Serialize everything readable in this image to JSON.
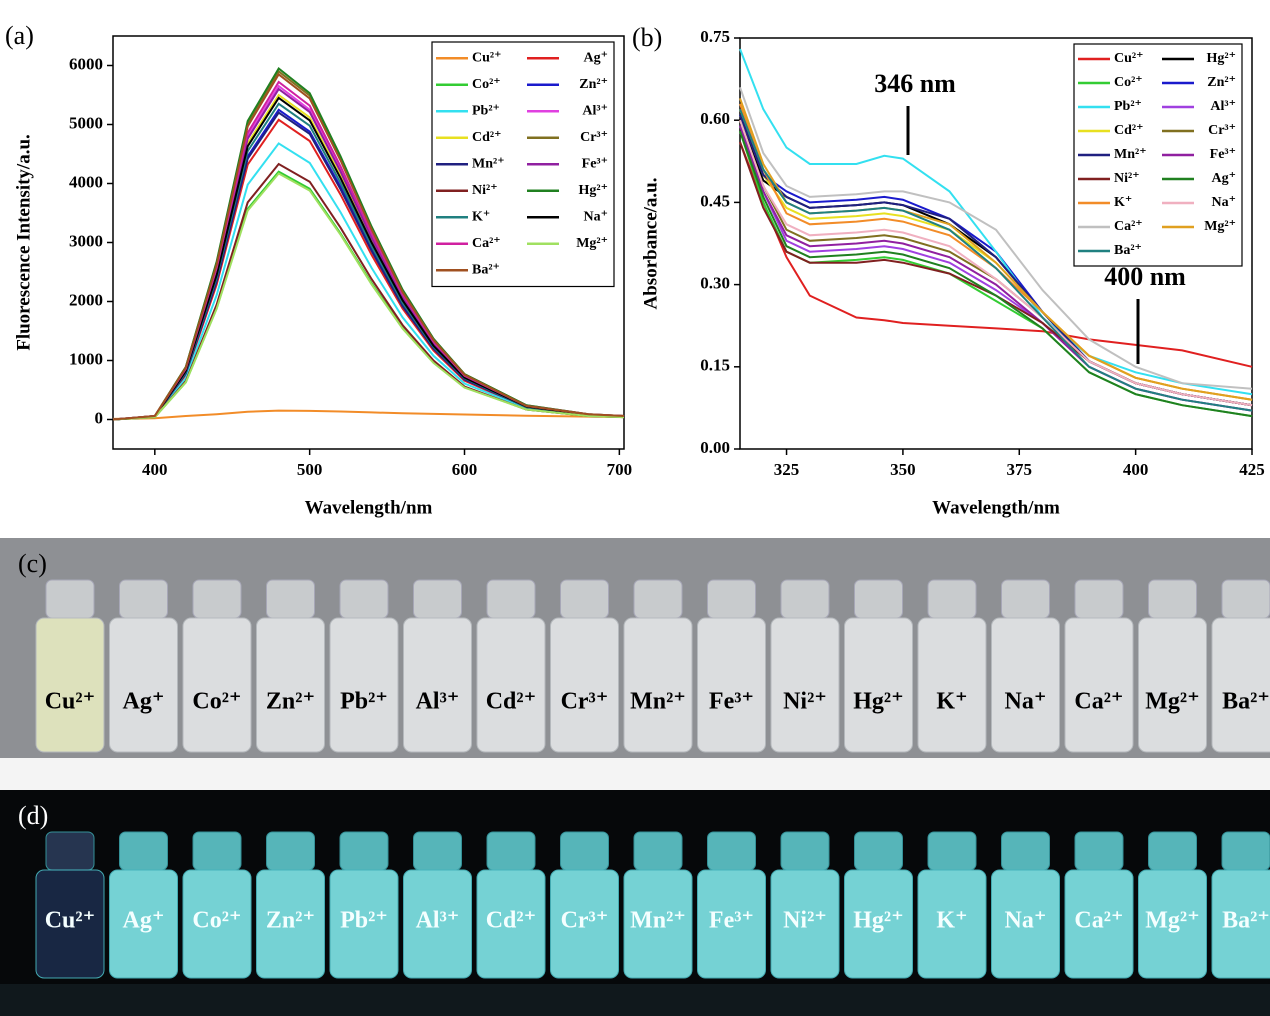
{
  "chart_data": [
    {
      "type": "line",
      "panel_label": "(a)",
      "x_label": "Wavelength/nm",
      "y_label": "Fluorescence Intensity/a.u.",
      "xlim": [
        373,
        703
      ],
      "xticks": [
        400,
        500,
        600,
        700
      ],
      "ylim": [
        -500,
        6500
      ],
      "yticks": [
        0,
        1000,
        2000,
        3000,
        4000,
        5000,
        6000
      ],
      "legend": "upper right",
      "x": [
        373,
        400,
        420,
        440,
        460,
        480,
        500,
        520,
        540,
        560,
        580,
        600,
        640,
        680,
        703
      ],
      "series": [
        {
          "name": "Cu²⁺",
          "color": "#f28c28",
          "values": [
            10,
            20,
            60,
            90,
            130,
            150,
            145,
            135,
            120,
            105,
            95,
            85,
            65,
            50,
            40
          ]
        },
        {
          "name": "Ag⁺",
          "color": "#e02020",
          "values": [
            0,
            50,
            760,
            2290,
            4320,
            5080,
            4720,
            3810,
            2790,
            1880,
            1170,
            660,
            200,
            80,
            50
          ]
        },
        {
          "name": "Co²⁺",
          "color": "#33cc33",
          "values": [
            0,
            40,
            630,
            1890,
            3570,
            4200,
            3910,
            3150,
            2310,
            1550,
            970,
            550,
            170,
            60,
            40
          ]
        },
        {
          "name": "Zn²⁺",
          "color": "#1a1acc",
          "values": [
            0,
            50,
            790,
            2360,
            4460,
            5250,
            4880,
            3940,
            2890,
            1940,
            1210,
            680,
            210,
            80,
            50
          ]
        },
        {
          "name": "Pb²⁺",
          "color": "#33e0f0",
          "values": [
            0,
            50,
            700,
            2110,
            3980,
            4680,
            4350,
            3510,
            2570,
            1730,
            1080,
            610,
            190,
            70,
            50
          ]
        },
        {
          "name": "Al³⁺",
          "color": "#e040e0",
          "values": [
            0,
            60,
            850,
            2540,
            4800,
            5650,
            5250,
            4240,
            3110,
            2090,
            1300,
            730,
            230,
            80,
            60
          ]
        },
        {
          "name": "Cd²⁺",
          "color": "#e8e020",
          "values": [
            0,
            60,
            830,
            2480,
            4680,
            5500,
            5120,
            4130,
            3030,
            2040,
            1270,
            720,
            220,
            80,
            60
          ]
        },
        {
          "name": "Cr³⁺",
          "color": "#807020",
          "values": [
            0,
            60,
            890,
            2660,
            5020,
            5900,
            5490,
            4430,
            3250,
            2180,
            1360,
            770,
            240,
            90,
            60
          ]
        },
        {
          "name": "Mn²⁺",
          "color": "#202080",
          "values": [
            0,
            50,
            780,
            2340,
            4420,
            5200,
            4840,
            3900,
            2860,
            1920,
            1200,
            680,
            210,
            80,
            50
          ]
        },
        {
          "name": "Fe³⁺",
          "color": "#9020a0",
          "values": [
            0,
            60,
            840,
            2520,
            4760,
            5600,
            5210,
            4200,
            3080,
            2070,
            1290,
            730,
            220,
            80,
            60
          ]
        },
        {
          "name": "Ni²⁺",
          "color": "#802020",
          "values": [
            0,
            40,
            650,
            1950,
            3680,
            4330,
            4030,
            3250,
            2380,
            1600,
            1000,
            560,
            170,
            60,
            40
          ]
        },
        {
          "name": "Hg²⁺",
          "color": "#208020",
          "values": [
            0,
            60,
            890,
            2680,
            5060,
            5950,
            5530,
            4460,
            3270,
            2200,
            1370,
            770,
            240,
            90,
            60
          ]
        },
        {
          "name": "K⁺",
          "color": "#208080",
          "values": [
            0,
            50,
            800,
            2410,
            4550,
            5350,
            4980,
            4010,
            2940,
            1980,
            1230,
            700,
            210,
            80,
            50
          ]
        },
        {
          "name": "Na⁺",
          "color": "#000000",
          "values": [
            0,
            50,
            820,
            2450,
            4630,
            5450,
            5070,
            4090,
            3000,
            2020,
            1250,
            710,
            220,
            80,
            50
          ]
        },
        {
          "name": "Ca²⁺",
          "color": "#d020a0",
          "values": [
            0,
            60,
            860,
            2570,
            4860,
            5720,
            5320,
            4290,
            3150,
            2120,
            1320,
            740,
            230,
            90,
            60
          ]
        },
        {
          "name": "Mg²⁺",
          "color": "#a0e060",
          "values": [
            0,
            40,
            630,
            1880,
            3540,
            4170,
            3880,
            3130,
            2290,
            1540,
            960,
            540,
            170,
            60,
            40
          ]
        },
        {
          "name": "Ba²⁺",
          "color": "#a05020",
          "values": [
            0,
            60,
            880,
            2630,
            4970,
            5850,
            5440,
            4390,
            3220,
            2160,
            1350,
            760,
            230,
            90,
            60
          ]
        }
      ]
    },
    {
      "type": "line",
      "panel_label": "(b)",
      "x_label": "Wavelength/nm",
      "y_label": "Absorbance/a.u.",
      "xlim": [
        315,
        425
      ],
      "xticks": [
        325,
        350,
        375,
        400,
        425
      ],
      "ylim": [
        0,
        0.75
      ],
      "yticks": [
        {
          "value": 0,
          "label": "0.00"
        },
        0.15,
        {
          "value": 0.3,
          "label": "0.30"
        },
        0.45,
        {
          "value": 0.6,
          "label": "0.60"
        },
        0.75
      ],
      "legend": "upper right",
      "annotations": [
        "346 nm",
        "400 nm"
      ],
      "x": [
        315,
        320,
        325,
        330,
        340,
        346,
        350,
        360,
        370,
        380,
        390,
        400,
        410,
        425
      ],
      "series": [
        {
          "name": "Cu²⁺",
          "color": "#e02020",
          "values": [
            0.56,
            0.45,
            0.35,
            0.28,
            0.24,
            0.235,
            0.23,
            0.225,
            0.22,
            0.215,
            0.2,
            0.19,
            0.18,
            0.15
          ]
        },
        {
          "name": "Hg²⁺",
          "color": "#000000",
          "values": [
            0.6,
            0.49,
            0.46,
            0.44,
            0.445,
            0.45,
            0.445,
            0.41,
            0.35,
            0.25,
            0.16,
            0.12,
            0.1,
            0.08
          ]
        },
        {
          "name": "Co²⁺",
          "color": "#33cc33",
          "values": [
            0.58,
            0.45,
            0.36,
            0.34,
            0.345,
            0.35,
            0.345,
            0.32,
            0.27,
            0.22,
            0.14,
            0.1,
            0.08,
            0.06
          ]
        },
        {
          "name": "Zn²⁺",
          "color": "#1a1acc",
          "values": [
            0.61,
            0.5,
            0.47,
            0.45,
            0.455,
            0.46,
            0.455,
            0.42,
            0.36,
            0.25,
            0.16,
            0.12,
            0.1,
            0.08
          ]
        },
        {
          "name": "Pb²⁺",
          "color": "#33e0f0",
          "values": [
            0.73,
            0.62,
            0.55,
            0.52,
            0.52,
            0.535,
            0.53,
            0.47,
            0.36,
            0.24,
            0.17,
            0.14,
            0.12,
            0.1
          ]
        },
        {
          "name": "Al³⁺",
          "color": "#a040e0",
          "values": [
            0.59,
            0.47,
            0.38,
            0.36,
            0.365,
            0.37,
            0.365,
            0.34,
            0.29,
            0.23,
            0.15,
            0.11,
            0.09,
            0.07
          ]
        },
        {
          "name": "Cd²⁺",
          "color": "#e8e020",
          "values": [
            0.62,
            0.5,
            0.44,
            0.42,
            0.425,
            0.43,
            0.425,
            0.4,
            0.34,
            0.25,
            0.17,
            0.13,
            0.11,
            0.09
          ]
        },
        {
          "name": "Cr³⁺",
          "color": "#807020",
          "values": [
            0.6,
            0.48,
            0.4,
            0.38,
            0.385,
            0.39,
            0.385,
            0.36,
            0.31,
            0.24,
            0.16,
            0.12,
            0.1,
            0.08
          ]
        },
        {
          "name": "Mn²⁺",
          "color": "#202080",
          "values": [
            0.61,
            0.5,
            0.46,
            0.44,
            0.445,
            0.45,
            0.445,
            0.42,
            0.35,
            0.25,
            0.16,
            0.12,
            0.1,
            0.08
          ]
        },
        {
          "name": "Fe³⁺",
          "color": "#9020a0",
          "values": [
            0.59,
            0.47,
            0.39,
            0.37,
            0.375,
            0.38,
            0.375,
            0.35,
            0.3,
            0.23,
            0.15,
            0.11,
            0.09,
            0.07
          ]
        },
        {
          "name": "Ni²⁺",
          "color": "#802020",
          "values": [
            0.56,
            0.44,
            0.36,
            0.34,
            0.34,
            0.345,
            0.34,
            0.32,
            0.28,
            0.23,
            0.16,
            0.12,
            0.1,
            0.08
          ]
        },
        {
          "name": "Ag⁺",
          "color": "#208020",
          "values": [
            0.58,
            0.46,
            0.37,
            0.35,
            0.355,
            0.36,
            0.355,
            0.33,
            0.28,
            0.22,
            0.14,
            0.1,
            0.08,
            0.06
          ]
        },
        {
          "name": "K⁺",
          "color": "#f28c28",
          "values": [
            0.63,
            0.51,
            0.43,
            0.41,
            0.415,
            0.42,
            0.415,
            0.39,
            0.33,
            0.25,
            0.17,
            0.13,
            0.11,
            0.09
          ]
        },
        {
          "name": "Na⁺",
          "color": "#f0b0c0",
          "values": [
            0.6,
            0.48,
            0.41,
            0.39,
            0.395,
            0.4,
            0.395,
            0.37,
            0.31,
            0.24,
            0.16,
            0.12,
            0.1,
            0.08
          ]
        },
        {
          "name": "Ca²⁺",
          "color": "#c0c0c0",
          "values": [
            0.66,
            0.54,
            0.48,
            0.46,
            0.465,
            0.47,
            0.47,
            0.45,
            0.4,
            0.29,
            0.2,
            0.15,
            0.12,
            0.11
          ]
        },
        {
          "name": "Mg²⁺",
          "color": "#e0a020",
          "values": [
            0.64,
            0.52,
            0.45,
            0.43,
            0.435,
            0.44,
            0.435,
            0.41,
            0.34,
            0.25,
            0.17,
            0.13,
            0.11,
            0.09
          ]
        },
        {
          "name": "Ba²⁺",
          "color": "#208080",
          "values": [
            0.62,
            0.51,
            0.45,
            0.43,
            0.435,
            0.44,
            0.435,
            0.4,
            0.33,
            0.24,
            0.15,
            0.11,
            0.09,
            0.07
          ]
        }
      ]
    }
  ],
  "photos": [
    {
      "panel_label": "(c)",
      "labels": [
        "Cu²⁺",
        "Ag⁺",
        "Co²⁺",
        "Zn²⁺",
        "Pb²⁺",
        "Al³⁺",
        "Cd²⁺",
        "Cr³⁺",
        "Mn²⁺",
        "Fe³⁺",
        "Ni²⁺",
        "Hg²⁺",
        "K⁺",
        "Na⁺",
        "Ca²⁺",
        "Mg²⁺",
        "Ba²⁺"
      ]
    },
    {
      "panel_label": "(d)",
      "labels": [
        "Cu²⁺",
        "Ag⁺",
        "Co²⁺",
        "Zn²⁺",
        "Pb²⁺",
        "Al³⁺",
        "Cd²⁺",
        "Cr³⁺",
        "Mn²⁺",
        "Fe³⁺",
        "Ni²⁺",
        "Hg²⁺",
        "K⁺",
        "Na⁺",
        "Ca²⁺",
        "Mg²⁺",
        "Ba²⁺"
      ]
    }
  ]
}
